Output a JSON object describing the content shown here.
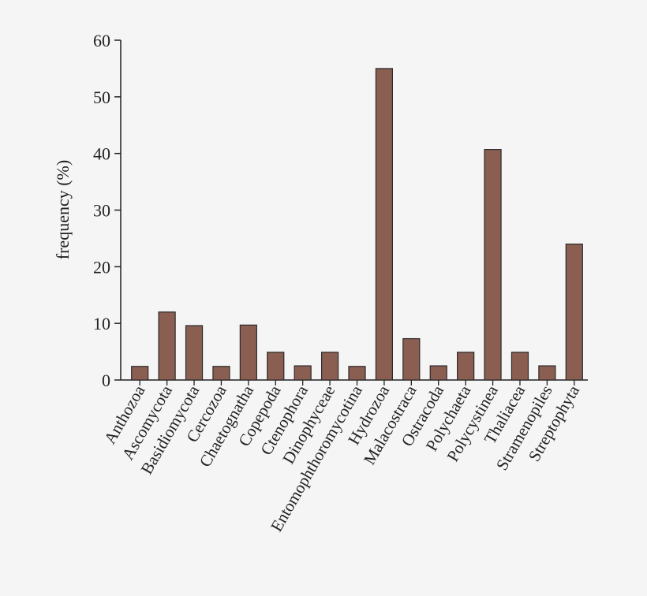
{
  "colors": {
    "background": "#f5f5f5",
    "bar_fill": "#8b5e52",
    "bar_stroke": "#2a2a2a",
    "axis": "#222222"
  },
  "chart_data": {
    "type": "bar",
    "ylabel": "frequency (%)",
    "xlabel": "",
    "ylim": [
      0,
      60
    ],
    "yticks": [
      0,
      10,
      20,
      30,
      40,
      50,
      60
    ],
    "grid": false,
    "categories": [
      "Anthozoa",
      "Ascomycota",
      "Basidiomycota",
      "Cercozoa",
      "Chaetognatha",
      "Copepoda",
      "Ctenophora",
      "Dinophyceae",
      "Entomophthoromycotina",
      "Hydrozoa",
      "Malacostraca",
      "Ostracoda",
      "Polychaeta",
      "Polycystinea",
      "Thaliacea",
      "Stramenopiles",
      "Streptophyta"
    ],
    "values": [
      2.4,
      12.0,
      9.6,
      2.4,
      9.7,
      4.9,
      2.5,
      4.9,
      2.4,
      55.0,
      7.3,
      2.5,
      4.9,
      40.7,
      4.9,
      2.5,
      24.0
    ]
  }
}
